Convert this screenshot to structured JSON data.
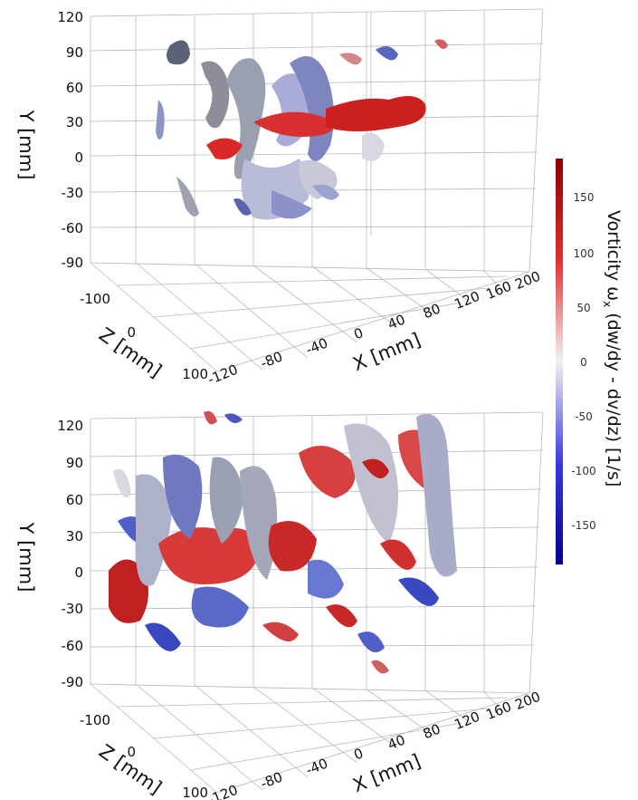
{
  "colorbar": {
    "title_main": "Vorticity ω",
    "title_sub": "x",
    "title_rest": " (dw/dy - dv/dz) [1/s]",
    "ticks": [
      "150",
      "100",
      "50",
      "0",
      "-50",
      "-100",
      "-150"
    ],
    "range": [
      -180,
      180
    ],
    "colors": {
      "max": "#8b0000",
      "mid": "#f2f2f2",
      "min": "#00008b"
    }
  },
  "panels": [
    {
      "id": "top",
      "y_label": "Y [mm]",
      "x_label": "X [mm]",
      "z_label": "Z [mm]",
      "y_ticks": [
        "120",
        "90",
        "60",
        "30",
        "0",
        "-30",
        "-60",
        "-90"
      ],
      "x_ticks": [
        "-120",
        "-80",
        "-40",
        "0",
        "40",
        "80",
        "120",
        "160",
        "200"
      ],
      "z_ticks": [
        "-100",
        "0",
        "100"
      ],
      "density": "sparse"
    },
    {
      "id": "bottom",
      "y_label": "Y [mm]",
      "x_label": "X [mm]",
      "z_label": "Z [mm]",
      "y_ticks": [
        "120",
        "90",
        "60",
        "30",
        "0",
        "-30",
        "-60",
        "-90"
      ],
      "x_ticks": [
        "-120",
        "-80",
        "-40",
        "0",
        "40",
        "80",
        "120",
        "160",
        "200"
      ],
      "z_ticks": [
        "-100",
        "0",
        "100"
      ],
      "density": "dense"
    }
  ]
}
